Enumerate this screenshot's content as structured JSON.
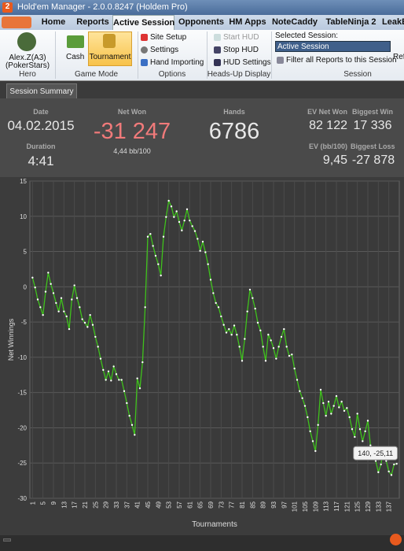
{
  "window": {
    "title": "Hold'em Manager - 2.0.0.8247 (Holdem Pro)",
    "logo": "2"
  },
  "tabs": [
    "Home",
    "Reports",
    "Active Session",
    "Opponents",
    "HM Apps",
    "NoteCaddy",
    "TableNinja 2",
    "LeakBu"
  ],
  "ribbon": {
    "hero": {
      "name": "Alex.Z(A3)",
      "site": "(PokerStars)",
      "group": "Hero"
    },
    "game_mode": {
      "items": [
        "Cash",
        "Tournament"
      ],
      "group": "Game Mode"
    },
    "options": {
      "items": [
        "Site Setup",
        "Settings",
        "Hand Importing"
      ],
      "group": "Options"
    },
    "hud": {
      "items": [
        "Start HUD",
        "Stop HUD",
        "HUD Settings"
      ],
      "group": "Heads-Up Display"
    },
    "session": {
      "label": "Selected Session:",
      "selected": "Active Session",
      "filter": "Filter all Reports to this Session",
      "refresh": "Ref",
      "group": "Session"
    }
  },
  "summary": {
    "tab": "Session Summary",
    "date": {
      "label": "Date",
      "value": "04.02.2015"
    },
    "duration": {
      "label": "Duration",
      "value": "4:41"
    },
    "net_won": {
      "label": "Net Won",
      "value": "-31 247",
      "sub": "4,44 bb/100"
    },
    "hands": {
      "label": "Hands",
      "value": "6786"
    },
    "ev_net_won": {
      "label": "EV Net Won",
      "value": "82 122"
    },
    "ev_bb": {
      "label": "EV (bb/100)",
      "value": "9,45"
    },
    "biggest_win": {
      "label": "Biggest Win",
      "value": "17 336"
    },
    "biggest_loss": {
      "label": "Biggest Loss",
      "value": "-27 878"
    }
  },
  "chart_data": {
    "type": "line",
    "x_label": "Tournaments",
    "y_label": "Net Winnings",
    "color": "#3fc21c",
    "grid": true,
    "annotation": "140, -25,11",
    "x": [
      1,
      2,
      3,
      4,
      5,
      6,
      7,
      8,
      9,
      10,
      11,
      12,
      13,
      14,
      15,
      16,
      17,
      18,
      19,
      20,
      21,
      22,
      23,
      24,
      25,
      26,
      27,
      28,
      29,
      30,
      31,
      32,
      33,
      34,
      35,
      36,
      37,
      38,
      39,
      40,
      41,
      42,
      43,
      44,
      45,
      46,
      47,
      48,
      49,
      50,
      51,
      52,
      53,
      54,
      55,
      56,
      57,
      58,
      59,
      60,
      61,
      62,
      63,
      64,
      65,
      66,
      67,
      68,
      69,
      70,
      71,
      72,
      73,
      74,
      75,
      76,
      77,
      78,
      79,
      80,
      81,
      82,
      83,
      84,
      85,
      86,
      87,
      88,
      89,
      90,
      91,
      92,
      93,
      94,
      95,
      96,
      97,
      98,
      99,
      100,
      101,
      102,
      103,
      104,
      105,
      106,
      107,
      108,
      109,
      110,
      111,
      112,
      113,
      114,
      115,
      116,
      117,
      118,
      119,
      120,
      121,
      122,
      123,
      124,
      125,
      126,
      127,
      128,
      129,
      130,
      131,
      132,
      133,
      134,
      135,
      136,
      137,
      138,
      139,
      140
    ],
    "values": [
      1.3,
      -0.1,
      -1.8,
      -2.9,
      -4,
      -0.7,
      2,
      0.4,
      -0.9,
      -2.3,
      -3.5,
      -1.6,
      -3.5,
      -4.2,
      -6,
      -1.8,
      0.2,
      -1.6,
      -2.9,
      -4.6,
      -5.1,
      -5.7,
      -4,
      -5.4,
      -7.1,
      -8.5,
      -10.2,
      -11.8,
      -13.2,
      -12,
      -13.3,
      -11.3,
      -12.4,
      -13.2,
      -13.2,
      -14.8,
      -16.5,
      -18.3,
      -19.6,
      -21,
      -13,
      -14.4,
      -10.7,
      -2.9,
      7.1,
      7.5,
      5.8,
      4.4,
      3.2,
      1.6,
      7.1,
      9.9,
      12.2,
      11.4,
      9.9,
      10.7,
      9.2,
      8,
      9.4,
      11,
      9.4,
      8.6,
      7.9,
      6.8,
      5.1,
      6.4,
      4.9,
      3.2,
      1,
      -0.9,
      -2.3,
      -2.9,
      -4.2,
      -5.4,
      -6.5,
      -6,
      -6.8,
      -5.5,
      -6.8,
      -8.5,
      -10.5,
      -7.4,
      -3.5,
      -0.4,
      -1.6,
      -3.1,
      -5.1,
      -6.2,
      -8.5,
      -10.5,
      -6.8,
      -7.6,
      -8.7,
      -10.2,
      -8.5,
      -7.1,
      -6,
      -8.5,
      -9.8,
      -9.6,
      -11.6,
      -13.2,
      -14.8,
      -15.8,
      -16.9,
      -18.5,
      -20.5,
      -21.9,
      -23.3,
      -19.6,
      -14.6,
      -16.5,
      -18.3,
      -16.3,
      -18,
      -16.9,
      -15.5,
      -17.1,
      -16.3,
      -17.6,
      -17.2,
      -18.5,
      -20.2,
      -21.3,
      -18,
      -20.2,
      -21.9,
      -20.5,
      -19,
      -22.5,
      -23.9,
      -24.7,
      -26.3,
      -25.2,
      -22.9,
      -24.7,
      -26.2,
      -26.7,
      -25.2,
      -25.11
    ],
    "xlim": [
      0,
      141
    ],
    "xticks": [
      1,
      5,
      9,
      13,
      17,
      21,
      25,
      29,
      33,
      37,
      41,
      45,
      49,
      53,
      57,
      61,
      65,
      69,
      73,
      77,
      81,
      85,
      89,
      93,
      97,
      101,
      105,
      109,
      113,
      117,
      121,
      125,
      129,
      133,
      137
    ],
    "ylim": [
      -30,
      15
    ],
    "yticks": [
      15,
      10,
      5,
      0,
      -5,
      -10,
      -15,
      -20,
      -25,
      -30
    ]
  }
}
